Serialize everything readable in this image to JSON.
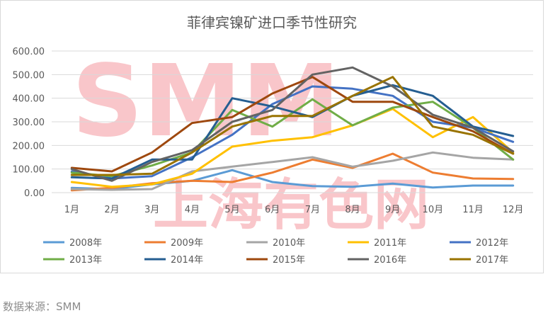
{
  "chart_data": {
    "type": "line",
    "title": "菲律宾镍矿进口季节性研究",
    "xlabel": "",
    "ylabel": "",
    "categories": [
      "1月",
      "2月",
      "3月",
      "4月",
      "5月",
      "6月",
      "7月",
      "8月",
      "9月",
      "10月",
      "11月",
      "12月"
    ],
    "ylim": [
      0,
      600
    ],
    "yticks": [
      0,
      100,
      200,
      300,
      400,
      500,
      600
    ],
    "ytick_labels": [
      "0.00",
      "100.00",
      "200.00",
      "300.00",
      "400.00",
      "500.00",
      "600.00"
    ],
    "grid": "horizontal",
    "legend_position": "bottom",
    "watermark": "SMM 上海有色网",
    "series": [
      {
        "name": "2008年",
        "color": "#5b9bd5",
        "values": [
          20,
          15,
          35,
          50,
          95,
          45,
          28,
          25,
          38,
          22,
          30,
          30
        ]
      },
      {
        "name": "2009年",
        "color": "#ed7d31",
        "values": [
          10,
          20,
          40,
          50,
          45,
          85,
          140,
          105,
          165,
          85,
          60,
          58
        ]
      },
      {
        "name": "2010年",
        "color": "#a5a5a5",
        "values": [
          15,
          12,
          15,
          90,
          110,
          130,
          150,
          110,
          135,
          170,
          148,
          140
        ]
      },
      {
        "name": "2011年",
        "color": "#ffc000",
        "values": [
          45,
          25,
          35,
          80,
          195,
          220,
          235,
          285,
          355,
          235,
          320,
          170
        ]
      },
      {
        "name": "2012年",
        "color": "#4472c4",
        "values": [
          90,
          60,
          70,
          150,
          245,
          375,
          450,
          440,
          410,
          300,
          275,
          215
        ]
      },
      {
        "name": "2013年",
        "color": "#70ad47",
        "values": [
          85,
          70,
          115,
          170,
          350,
          280,
          395,
          285,
          360,
          385,
          275,
          140
        ]
      },
      {
        "name": "2014年",
        "color": "#255e91",
        "values": [
          65,
          60,
          140,
          140,
          400,
          365,
          320,
          410,
          455,
          410,
          280,
          240
        ]
      },
      {
        "name": "2015年",
        "color": "#9e480e",
        "values": [
          105,
          90,
          170,
          295,
          320,
          420,
          490,
          385,
          385,
          320,
          260,
          165
        ]
      },
      {
        "name": "2016年",
        "color": "#636363",
        "values": [
          100,
          50,
          130,
          180,
          300,
          350,
          500,
          530,
          450,
          330,
          275,
          175
        ]
      },
      {
        "name": "2017年",
        "color": "#997300",
        "values": [
          75,
          75,
          80,
          170,
          280,
          325,
          325,
          410,
          490,
          280,
          245,
          165
        ]
      }
    ]
  },
  "source_note": "数据来源：SMM"
}
